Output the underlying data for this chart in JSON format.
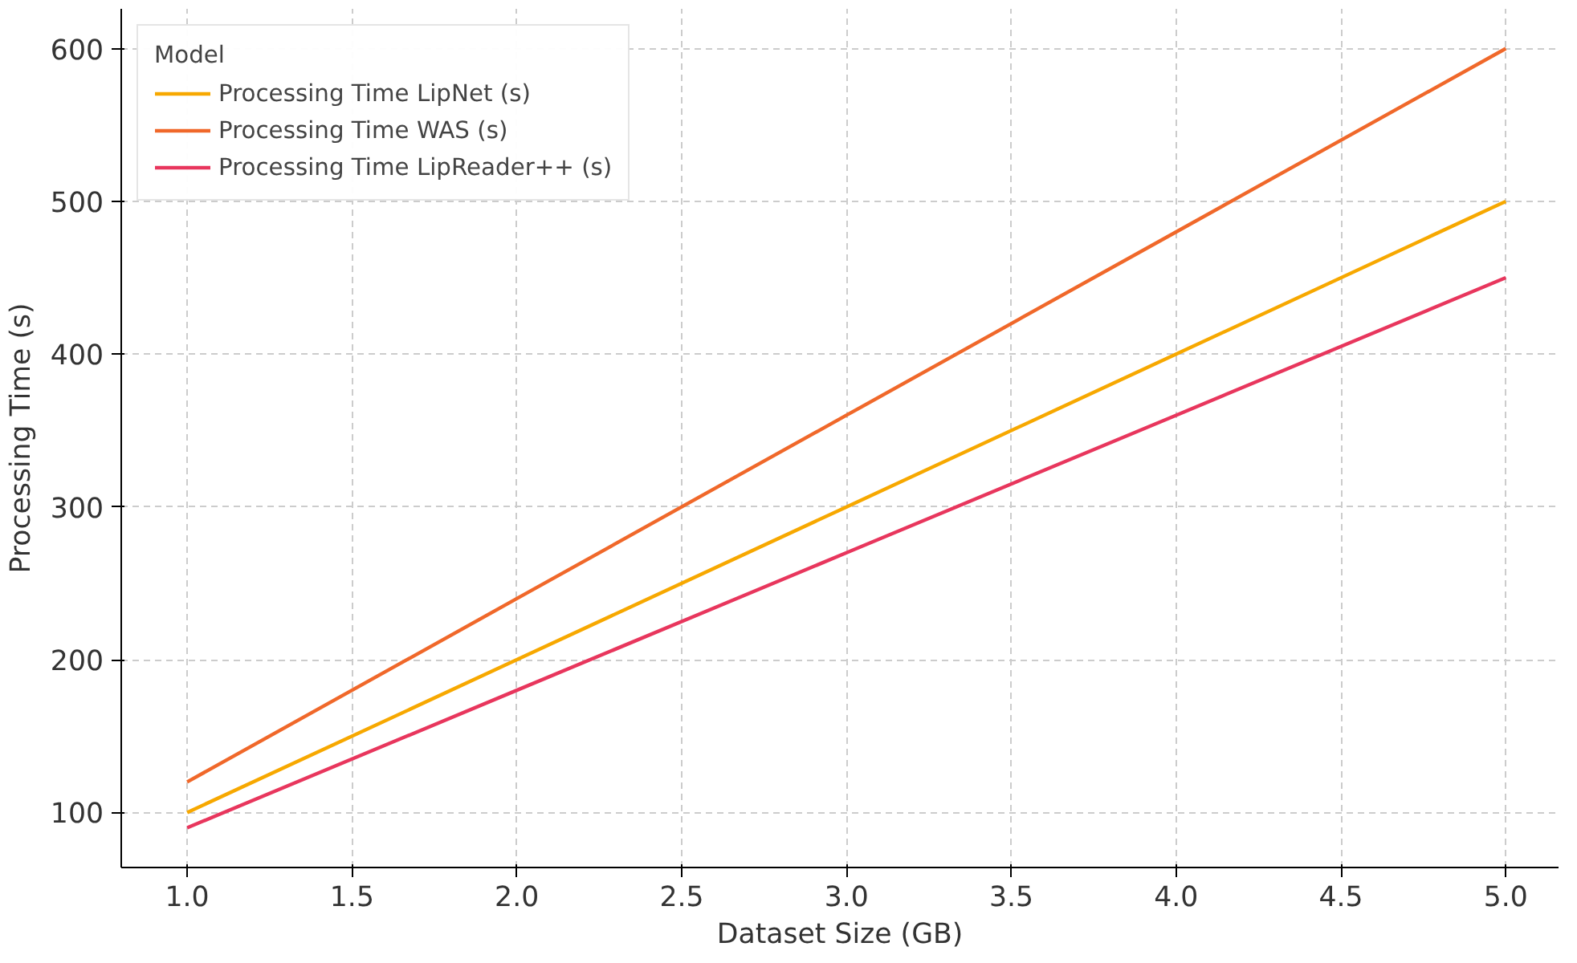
{
  "chart_data": {
    "type": "line",
    "xlabel": "Dataset Size (GB)",
    "ylabel": "Processing Time (s)",
    "legend_title": "Model",
    "x": [
      1,
      2,
      3,
      4,
      5
    ],
    "series": [
      {
        "name": "Processing Time LipNet (s)",
        "color": "#f7a800",
        "values": [
          100,
          200,
          300,
          400,
          500
        ]
      },
      {
        "name": "Processing Time WAS (s)",
        "color": "#f0682a",
        "values": [
          120,
          240,
          360,
          480,
          600
        ]
      },
      {
        "name": "Processing Time LipReader++ (s)",
        "color": "#e8365d",
        "values": [
          90,
          180,
          270,
          360,
          450
        ]
      }
    ],
    "xlim": [
      0.8,
      5.16
    ],
    "ylim": [
      64,
      626
    ],
    "xticks": [
      {
        "value": 1,
        "label": "1.0"
      },
      {
        "value": 1.5,
        "label": "1.5"
      },
      {
        "value": 2,
        "label": "2.0"
      },
      {
        "value": 2.5,
        "label": "2.5"
      },
      {
        "value": 3,
        "label": "3.0"
      },
      {
        "value": 3.5,
        "label": "3.5"
      },
      {
        "value": 4,
        "label": "4.0"
      },
      {
        "value": 4.5,
        "label": "4.5"
      },
      {
        "value": 5,
        "label": "5.0"
      }
    ],
    "yticks": [
      100,
      200,
      300,
      400,
      500,
      600
    ],
    "grid": true,
    "legend": "top left",
    "line_style": "solid",
    "marker": "none"
  }
}
